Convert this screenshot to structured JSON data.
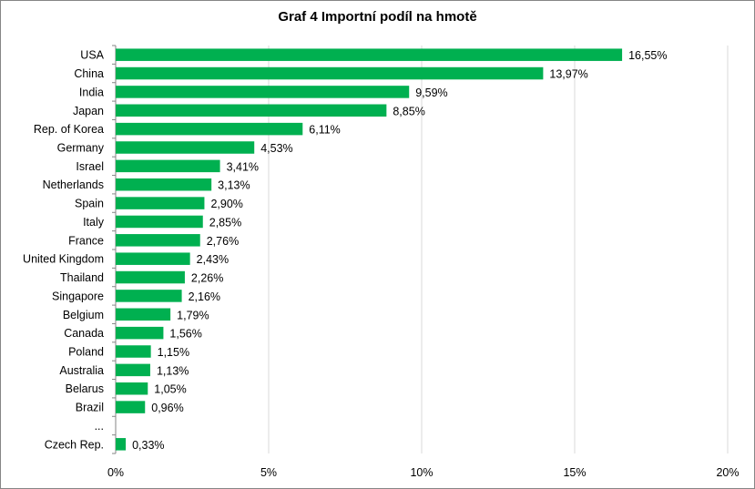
{
  "chart_data": {
    "type": "bar",
    "orientation": "horizontal",
    "title": "Graf 4 Importní podíl na hmotě",
    "categories": [
      "USA",
      "China",
      "India",
      "Japan",
      "Rep. of Korea",
      "Germany",
      "Israel",
      "Netherlands",
      "Spain",
      "Italy",
      "France",
      "United Kingdom",
      "Thailand",
      "Singapore",
      "Belgium",
      "Canada",
      "Poland",
      "Australia",
      "Belarus",
      "Brazil",
      "...",
      "Czech Rep."
    ],
    "values": [
      16.55,
      13.97,
      9.59,
      8.85,
      6.11,
      4.53,
      3.41,
      3.13,
      2.9,
      2.85,
      2.76,
      2.43,
      2.26,
      2.16,
      1.79,
      1.56,
      1.15,
      1.13,
      1.05,
      0.96,
      null,
      0.33
    ],
    "value_labels": [
      "16,55%",
      "13,97%",
      "9,59%",
      "8,85%",
      "6,11%",
      "4,53%",
      "3,41%",
      "3,13%",
      "2,90%",
      "2,85%",
      "2,76%",
      "2,43%",
      "2,26%",
      "2,16%",
      "1,79%",
      "1,56%",
      "1,15%",
      "1,13%",
      "1,05%",
      "0,96%",
      "",
      "0,33%"
    ],
    "x_ticks": [
      "0%",
      "5%",
      "10%",
      "15%",
      "20%"
    ],
    "xlim": [
      0,
      20
    ],
    "grid": true,
    "bar_color": "#00b050",
    "grid_color": "#d9d9d9",
    "axis_color": "#868686"
  }
}
